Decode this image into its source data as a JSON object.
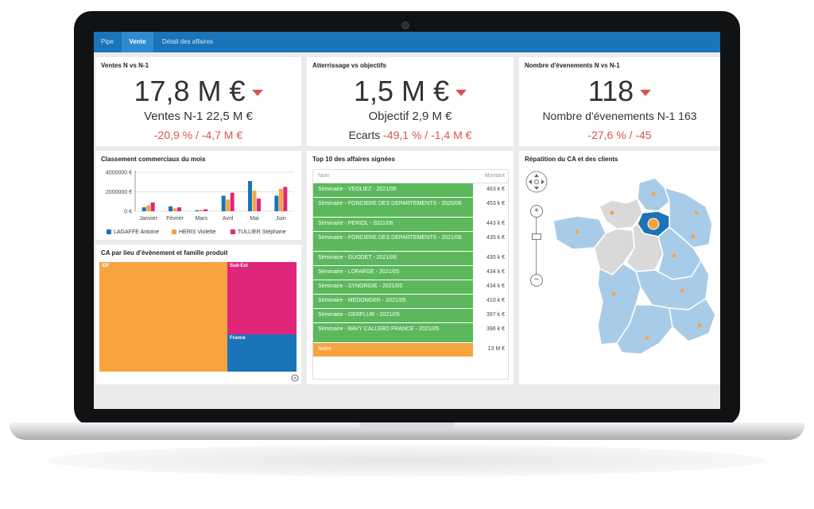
{
  "tabs": [
    {
      "label": "Pipe",
      "active": false
    },
    {
      "label": "Vente",
      "active": true
    },
    {
      "label": "Détail des affaires",
      "active": false
    }
  ],
  "kpi1": {
    "title": "Ventes N vs N-1",
    "value": "17,8 M €",
    "sub": "Ventes N-1 22,5 M €",
    "delta": "-20,9 % / -4,7 M €"
  },
  "kpi2": {
    "title": "Atterrissage vs objectifs",
    "value": "1,5 M €",
    "sub": "Objectif 2,9 M €",
    "delta_label": "Ecarts",
    "delta": "-49,1 % / -1,4 M €"
  },
  "kpi3": {
    "title": "Nombre d'évenements N vs N-1",
    "value": "118",
    "sub": "Nombre d'évenements N-1 163",
    "delta": "-27,6 % / -45"
  },
  "chart_panel": {
    "title": "Classement commerciaux du mois"
  },
  "chart_data": {
    "type": "bar",
    "categories": [
      "Janvier",
      "Février",
      "Mars",
      "Avril",
      "Mai",
      "Juin"
    ],
    "series": [
      {
        "name": "LAGAFFE Antoine",
        "color": "#1b73b8",
        "values": [
          400000,
          500000,
          100000,
          1600000,
          3100000,
          1600000
        ]
      },
      {
        "name": "HERIS Violette",
        "color": "#f7a440",
        "values": [
          600000,
          300000,
          150000,
          1200000,
          2100000,
          2300000
        ]
      },
      {
        "name": "TULLIER Stéphane",
        "color": "#e0267a",
        "values": [
          900000,
          400000,
          200000,
          1900000,
          1300000,
          2500000
        ]
      }
    ],
    "yticks": [
      "4000000 €",
      "2000000 €",
      "0 €"
    ],
    "ylim": [
      0,
      4000000
    ]
  },
  "treemap": {
    "title": "CA par lieu d'évènement et famille produit",
    "cells": [
      {
        "label": "IDF",
        "color": "#f7a440"
      },
      {
        "label": "Sud-Est",
        "color": "#e0267a"
      },
      {
        "label": "France",
        "color": "#1b73b8"
      }
    ]
  },
  "top10": {
    "title": "Top 10 des affaires signées",
    "col_name": "Nom",
    "col_value": "Montant",
    "rows": [
      {
        "name": "Séminaire - VEOLIEZ - 2021/05",
        "value": "463 k €"
      },
      {
        "name": "Séminaire - FONCIERE DES DEPARTEMENTS - 2020/06",
        "value": "453 k €"
      },
      {
        "name": "Séminaire - PERIOL - 2021/06",
        "value": "443 k €"
      },
      {
        "name": "Séminaire - FONCIERE DES DEPARTEMENTS - 2021/06",
        "value": "435 k €"
      },
      {
        "name": "Séminaire - GUODET - 2021/06",
        "value": "435 k €"
      },
      {
        "name": "Séminaire - LOFARGE - 2021/05",
        "value": "434 k €"
      },
      {
        "name": "Séminaire - SYNORGIE - 2021/05",
        "value": "434 k €"
      },
      {
        "name": "Séminaire - MEDONGER - 2021/05",
        "value": "410 k €"
      },
      {
        "name": "Séminaire - GERFLUR - 2021/05",
        "value": "397 k €"
      },
      {
        "name": "Séminaire - BAVY CALLEBO FRANCE - 2021/05",
        "value": "396 k €"
      },
      {
        "name": "Autre",
        "value": "13 M €"
      }
    ]
  },
  "map": {
    "title": "Répatition du CA et des clients",
    "zoom_in": "+",
    "zoom_out": "−"
  },
  "colors": {
    "tabbar": "#1b73b8",
    "negative": "#d9544d",
    "row_green": "#5cb85c",
    "row_other": "#f7a440",
    "map_fill": "#a8cce8",
    "map_grey": "#d9d9d9",
    "map_highlight": "#1b73b8"
  }
}
